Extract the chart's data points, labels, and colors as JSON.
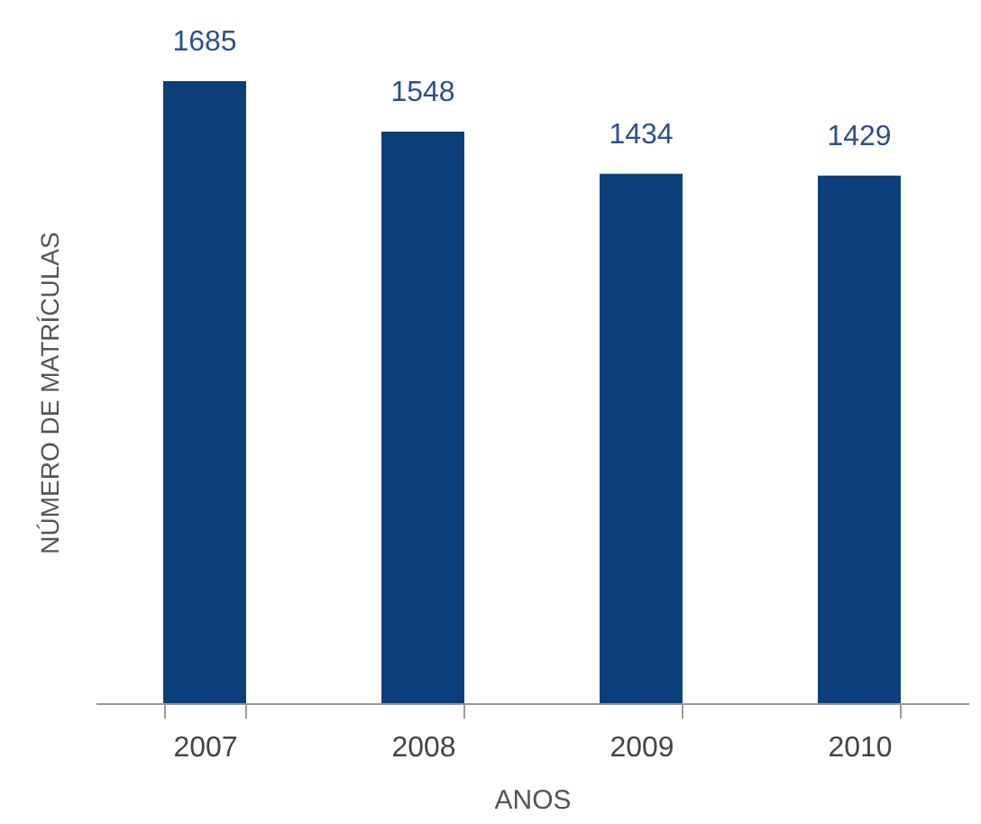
{
  "chart_data": {
    "type": "bar",
    "xlabel": "ANOS",
    "ylabel": "NÚMERO DE MATRÍCULAS",
    "categories": [
      "2007",
      "2008",
      "2009",
      "2010"
    ],
    "values": [
      1685,
      1548,
      1434,
      1429
    ],
    "color": "#0b3f7a",
    "data_labels": true,
    "grid": false
  }
}
